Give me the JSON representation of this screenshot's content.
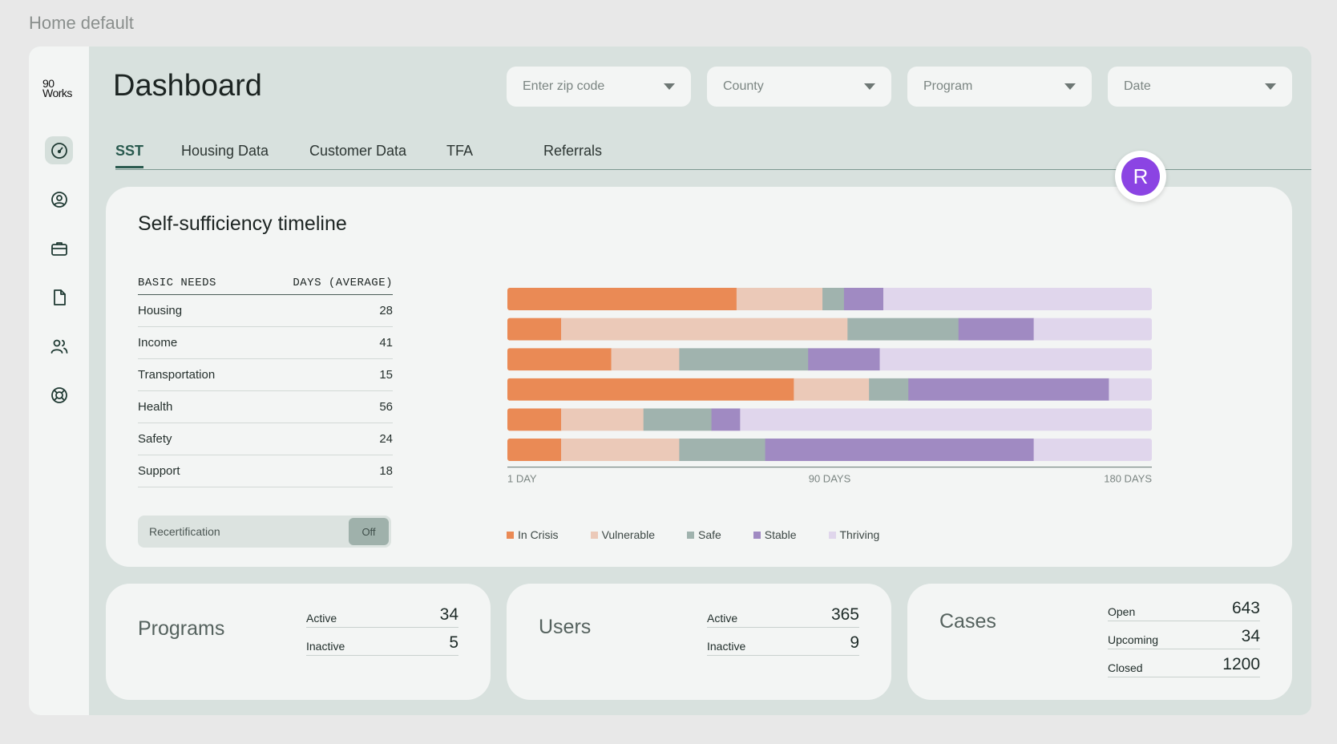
{
  "page_label": "Home default",
  "logo": {
    "line1": "90",
    "line2": "Works"
  },
  "sidebar": {
    "items": [
      {
        "name": "speedometer-icon",
        "active": true
      },
      {
        "name": "user-circle-icon",
        "active": false
      },
      {
        "name": "briefcase-icon",
        "active": false
      },
      {
        "name": "document-icon",
        "active": false
      },
      {
        "name": "users-icon",
        "active": false
      },
      {
        "name": "lifebuoy-icon",
        "active": false
      }
    ]
  },
  "header": {
    "title": "Dashboard",
    "filters": [
      {
        "placeholder": "Enter zip code"
      },
      {
        "placeholder": "County"
      },
      {
        "placeholder": "Program"
      },
      {
        "placeholder": "Date"
      }
    ]
  },
  "tabs": [
    {
      "label": "SST",
      "active": true
    },
    {
      "label": "Housing Data",
      "active": false
    },
    {
      "label": "Customer Data",
      "active": false
    },
    {
      "label": "TFA",
      "active": false
    },
    {
      "label": "Referrals",
      "active": false
    }
  ],
  "avatar": {
    "initial": "R",
    "color": "#8b44e3"
  },
  "sst": {
    "title": "Self-sufficiency timeline",
    "table": {
      "header": [
        "BASIC NEEDS",
        "DAYS (AVERAGE)"
      ],
      "rows": [
        {
          "need": "Housing",
          "days": "28"
        },
        {
          "need": "Income",
          "days": "41"
        },
        {
          "need": "Transportation",
          "days": "15"
        },
        {
          "need": "Health",
          "days": "56"
        },
        {
          "need": "Safety",
          "days": "24"
        },
        {
          "need": "Support",
          "days": "18"
        }
      ]
    },
    "toggle": {
      "label": "Recertification",
      "state": "Off"
    }
  },
  "chart_data": {
    "type": "bar",
    "orientation": "horizontal-stacked",
    "categories": [
      "Housing",
      "Income",
      "Transportation",
      "Health",
      "Safety",
      "Support"
    ],
    "xlim": [
      0,
      180
    ],
    "x_tick_labels": [
      "1 DAY",
      "90 DAYS",
      "180 DAYS"
    ],
    "x_ticks": [
      0,
      90,
      180
    ],
    "series": [
      {
        "name": "In Crisis",
        "color": "#ea8a55",
        "values": [
          64,
          15,
          29,
          80,
          15,
          15
        ]
      },
      {
        "name": "Vulnerable",
        "color": "#ebc9b8",
        "values": [
          24,
          80,
          19,
          21,
          23,
          33
        ]
      },
      {
        "name": "Safe",
        "color": "#a0b3ae",
        "values": [
          6,
          31,
          36,
          11,
          19,
          24
        ]
      },
      {
        "name": "Stable",
        "color": "#a08ac2",
        "values": [
          11,
          21,
          20,
          56,
          8,
          75
        ]
      },
      {
        "name": "Thriving",
        "color": "#e0d6ec",
        "values": [
          75,
          33,
          76,
          12,
          115,
          33
        ]
      }
    ]
  },
  "stats": [
    {
      "title": "Programs",
      "rows": [
        {
          "label": "Active",
          "value": "34"
        },
        {
          "label": "Inactive",
          "value": "5"
        }
      ]
    },
    {
      "title": "Users",
      "rows": [
        {
          "label": "Active",
          "value": "365"
        },
        {
          "label": "Inactive",
          "value": "9"
        }
      ]
    },
    {
      "title": "Cases",
      "rows": [
        {
          "label": "Open",
          "value": "643"
        },
        {
          "label": "Upcoming",
          "value": "34"
        },
        {
          "label": "Closed",
          "value": "1200"
        }
      ]
    }
  ]
}
